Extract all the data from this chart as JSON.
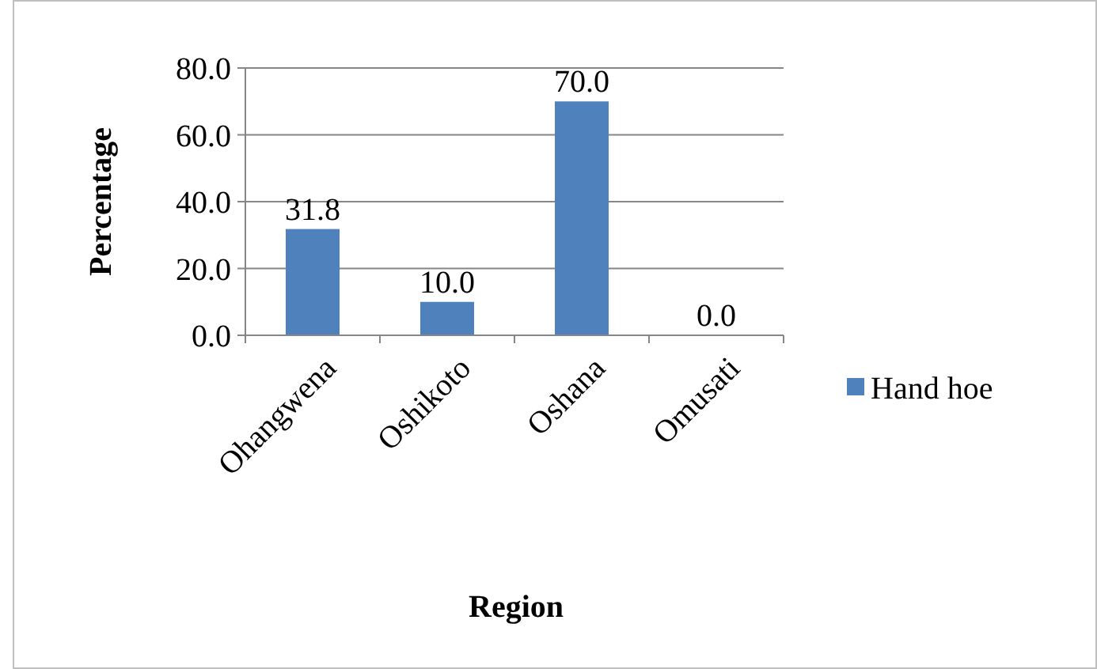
{
  "chart_data": {
    "type": "bar",
    "xlabel": "Region",
    "ylabel": "Percentage",
    "categories": [
      "Ohangwena",
      "Oshikoto",
      "Oshana",
      "Omusati"
    ],
    "series": [
      {
        "name": "Hand hoe",
        "color": "#4f81bd",
        "values": [
          31.8,
          10.0,
          70.0,
          0.0
        ]
      }
    ],
    "value_labels": [
      "31.8",
      "10.0",
      "70.0",
      "0.0"
    ],
    "ylim": [
      0,
      80
    ],
    "yticks": [
      {
        "value": 0,
        "label": "0.0"
      },
      {
        "value": 20,
        "label": "20.0"
      },
      {
        "value": 40,
        "label": "40.0"
      },
      {
        "value": 60,
        "label": "60.0"
      },
      {
        "value": 80,
        "label": "80.0"
      }
    ],
    "grid": "y",
    "legend": "right"
  }
}
